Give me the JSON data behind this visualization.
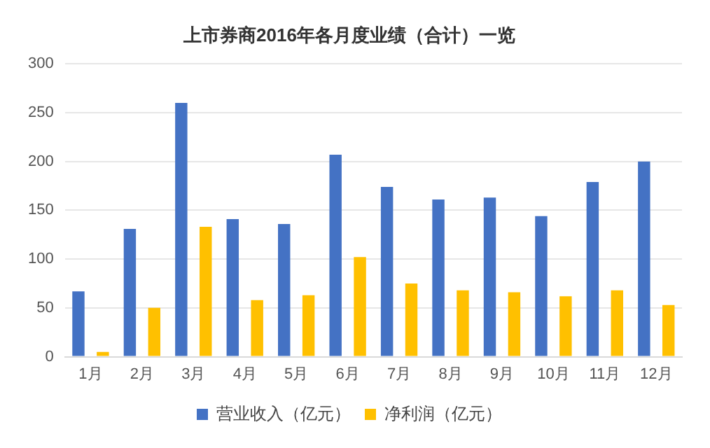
{
  "chart_data": {
    "type": "bar",
    "title": "上市券商2016年各月度业绩（合计）一览",
    "categories": [
      "1月",
      "2月",
      "3月",
      "4月",
      "5月",
      "6月",
      "7月",
      "8月",
      "9月",
      "10月",
      "11月",
      "12月"
    ],
    "series": [
      {
        "name": "营业收入（亿元）",
        "color": "#4472c4",
        "values": [
          67,
          131,
          260,
          141,
          136,
          207,
          174,
          161,
          163,
          144,
          179,
          200
        ]
      },
      {
        "name": "净利润（亿元）",
        "color": "#ffc000",
        "values": [
          5,
          50,
          133,
          58,
          63,
          102,
          75,
          68,
          66,
          62,
          68,
          53
        ]
      }
    ],
    "ylim": [
      0,
      300
    ],
    "yticks": [
      0,
      50,
      100,
      150,
      200,
      250,
      300
    ],
    "grid": "y",
    "legend": "bottom"
  }
}
